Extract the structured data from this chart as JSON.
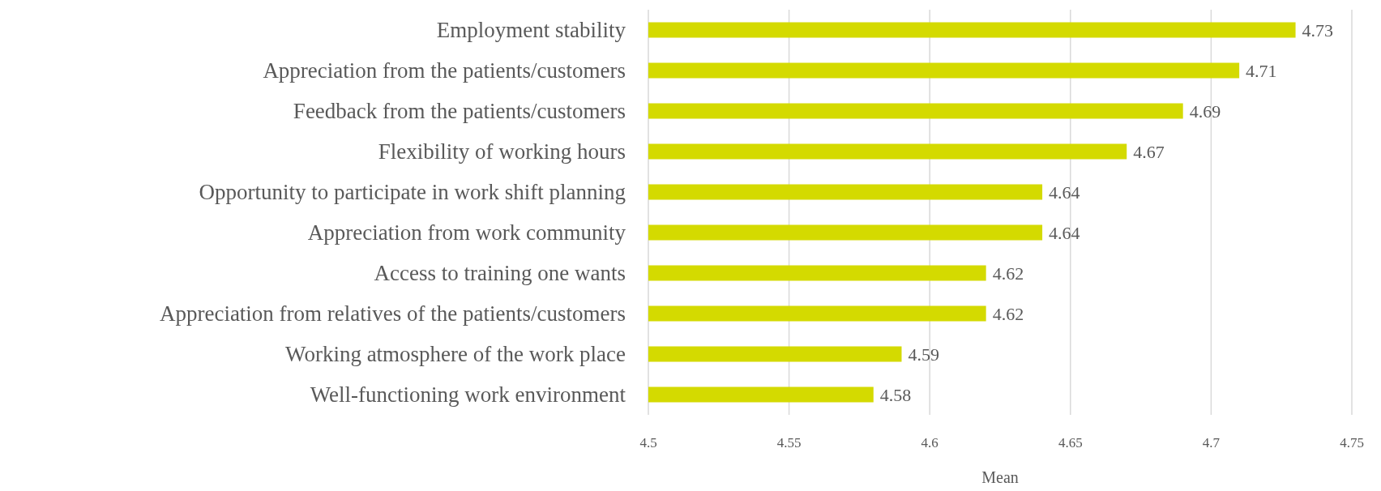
{
  "chart_data": {
    "type": "bar",
    "orientation": "horizontal",
    "xlabel": "Mean",
    "categories": [
      "Employment stability",
      "Appreciation from the patients/customers",
      "Feedback from the patients/customers",
      "Flexibility of working hours",
      "Opportunity to participate in work shift planning",
      "Appreciation from work community",
      "Access to training one wants",
      "Appreciation from relatives of the patients/customers",
      "Working atmosphere of the work place",
      "Well-functioning work environment"
    ],
    "values": [
      4.73,
      4.71,
      4.69,
      4.67,
      4.64,
      4.64,
      4.62,
      4.62,
      4.59,
      4.58
    ],
    "color": "#d4da00",
    "data_labels": true,
    "xlim": [
      4.5,
      4.75
    ],
    "xticks": [
      4.5,
      4.55,
      4.6,
      4.65,
      4.7,
      4.75
    ],
    "grid": "x"
  }
}
